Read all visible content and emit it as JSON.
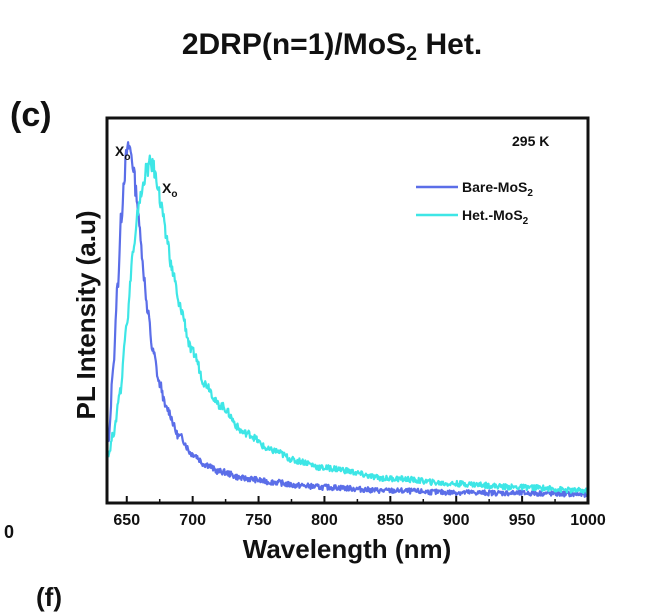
{
  "figure": {
    "title_main": "2DRP(n=1)/MoS",
    "title_sub": "2",
    "title_tail": " Het.",
    "panel_label": "(c)",
    "stray_left_digit": "0",
    "stray_bottom_label": "(f)"
  },
  "chart_data": {
    "type": "line",
    "xlabel": "Wavelength (nm)",
    "ylabel": "PL Intensity (a.u)",
    "xlim": [
      635,
      1000
    ],
    "ylim": [
      0,
      1.1
    ],
    "xticks": [
      650,
      700,
      750,
      800,
      850,
      900,
      950,
      1000
    ],
    "yticks": [],
    "grid": false,
    "temperature_label": "295 K",
    "annotations": [
      {
        "text": "X",
        "sub": "o",
        "series": "Bare-MoS2"
      },
      {
        "text": "X",
        "sub": "o",
        "series": "Het.-MoS2"
      }
    ],
    "legend": {
      "placement": "top-right",
      "entries": [
        {
          "name": "Bare-MoS",
          "sub": "2",
          "color": "#5b6ee8"
        },
        {
          "name": "Het.-MoS",
          "sub": "2",
          "color": "#3ee6e6"
        }
      ]
    },
    "series": [
      {
        "name": "Bare-MoS2",
        "color": "#5b6ee8",
        "x": [
          636,
          640,
          643,
          646,
          648,
          650,
          652,
          653,
          655,
          657,
          660,
          663,
          666,
          670,
          675,
          680,
          690,
          700,
          710,
          720,
          740,
          760,
          780,
          800,
          850,
          900,
          950,
          1000
        ],
        "y": [
          0.17,
          0.4,
          0.62,
          0.82,
          0.93,
          1.0,
          1.02,
          1.0,
          0.96,
          0.89,
          0.78,
          0.65,
          0.54,
          0.43,
          0.34,
          0.27,
          0.19,
          0.14,
          0.11,
          0.09,
          0.07,
          0.06,
          0.05,
          0.045,
          0.035,
          0.03,
          0.028,
          0.025
        ]
      },
      {
        "name": "Het.-MoS2",
        "color": "#3ee6e6",
        "x": [
          636,
          640,
          645,
          650,
          655,
          660,
          665,
          668,
          670,
          673,
          676,
          680,
          685,
          690,
          700,
          710,
          720,
          740,
          760,
          780,
          800,
          850,
          900,
          950,
          1000
        ],
        "y": [
          0.14,
          0.2,
          0.32,
          0.52,
          0.72,
          0.87,
          0.95,
          0.97,
          0.96,
          0.92,
          0.85,
          0.76,
          0.66,
          0.56,
          0.43,
          0.34,
          0.28,
          0.2,
          0.15,
          0.12,
          0.1,
          0.07,
          0.055,
          0.045,
          0.035
        ]
      }
    ]
  }
}
